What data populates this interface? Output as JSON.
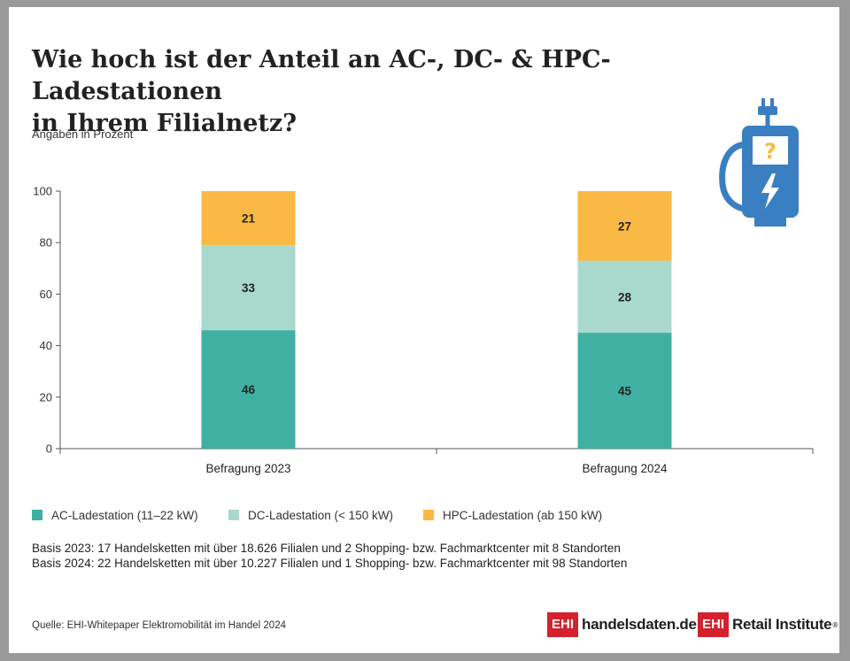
{
  "title_lines": [
    "Wie hoch ist der Anteil an AC-, DC- & HPC-Ladestationen",
    "in Ihrem Filialnetz?"
  ],
  "subtitle": "Angaben in Prozent",
  "chart_data": {
    "type": "bar",
    "stacked": true,
    "categories": [
      "Befragung 2023",
      "Befragung 2024"
    ],
    "series": [
      {
        "name": "AC-Ladestation (11–22 kW)",
        "values": [
          46,
          45
        ],
        "color": "#41b0a4"
      },
      {
        "name": "DC-Ladestation (< 150 kW)",
        "values": [
          33,
          28
        ],
        "color": "#a9d9cd"
      },
      {
        "name": "HPC-Ladestation (ab 150 kW)",
        "values": [
          21,
          27
        ],
        "color": "#f9b944"
      }
    ],
    "ylim": [
      0,
      100
    ],
    "yticks": [
      0,
      20,
      40,
      60,
      80,
      100
    ],
    "grid": false,
    "legend_position": "bottom-left"
  },
  "basis": [
    "Basis 2023: 17 Handelsketten mit über 18.626 Filialen und 2 Shopping- bzw. Fachmarktcenter mit 8 Standorten",
    "Basis 2024: 22 Handelsketten mit über 10.227 Filialen und 1 Shopping- bzw. Fachmarktcenter mit 98 Standorten"
  ],
  "source": "Quelle: EHI-Whitepaper Elektromobilität im Handel 2024",
  "logos": {
    "box": "EHI",
    "handelsdaten": "handelsdaten.de",
    "retail": "Retail Institute",
    "reg": "®"
  },
  "icon": {
    "name": "ev-charger-question-icon",
    "color": "#3a7fc1",
    "question": "?",
    "question_color": "#f9b944"
  }
}
